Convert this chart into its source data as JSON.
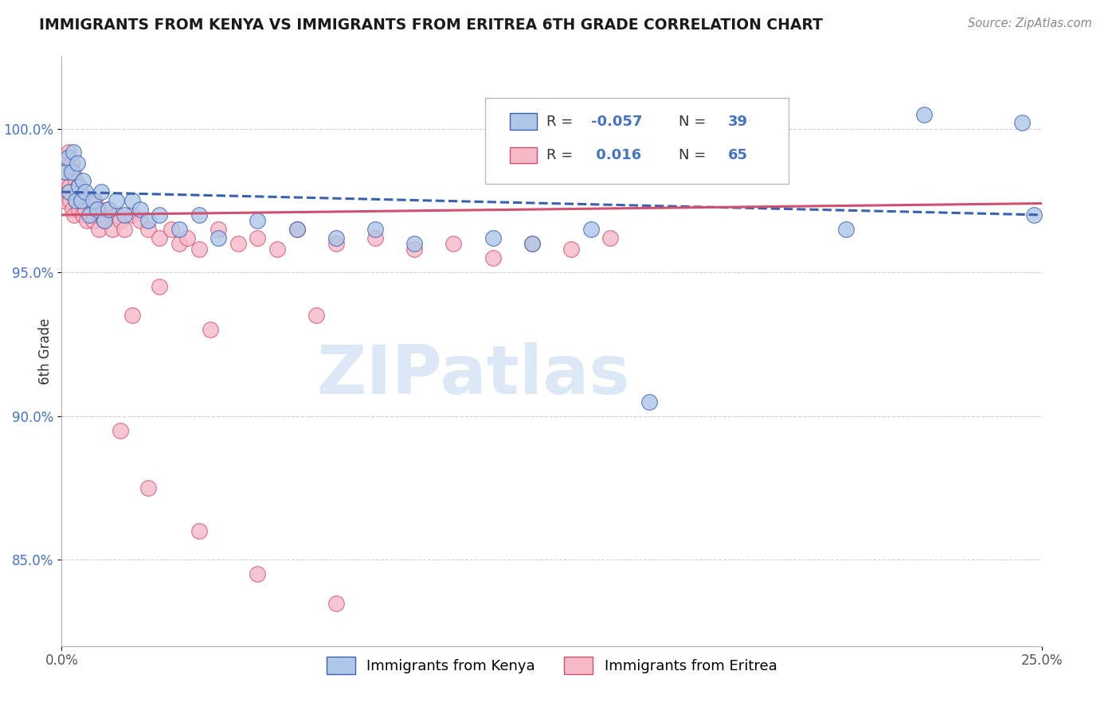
{
  "title": "IMMIGRANTS FROM KENYA VS IMMIGRANTS FROM ERITREA 6TH GRADE CORRELATION CHART",
  "source": "Source: ZipAtlas.com",
  "ylabel": "6th Grade",
  "xlim": [
    0.0,
    25.0
  ],
  "ylim": [
    82.0,
    102.5
  ],
  "yticks": [
    85.0,
    90.0,
    95.0,
    100.0
  ],
  "ytick_labels": [
    "85.0%",
    "90.0%",
    "95.0%",
    "100.0%"
  ],
  "kenya_color": "#aec6e8",
  "eritrea_color": "#f7b8c8",
  "kenya_line_color": "#3a60b0",
  "eritrea_line_color": "#d05070",
  "kenya_x": [
    0.1,
    0.15,
    0.2,
    0.25,
    0.3,
    0.35,
    0.4,
    0.45,
    0.5,
    0.55,
    0.6,
    0.7,
    0.8,
    0.9,
    1.0,
    1.1,
    1.2,
    1.4,
    1.6,
    1.8,
    2.0,
    2.2,
    2.5,
    3.0,
    3.5,
    4.0,
    5.0,
    6.0,
    7.0,
    8.0,
    9.0,
    11.0,
    13.5,
    22.0,
    24.5,
    24.8,
    15.0,
    20.0,
    12.0
  ],
  "kenya_y": [
    98.5,
    99.0,
    97.8,
    98.5,
    99.2,
    97.5,
    98.8,
    98.0,
    97.5,
    98.2,
    97.8,
    97.0,
    97.5,
    97.2,
    97.8,
    96.8,
    97.2,
    97.5,
    97.0,
    97.5,
    97.2,
    96.8,
    97.0,
    96.5,
    97.0,
    96.2,
    96.8,
    96.5,
    96.2,
    96.5,
    96.0,
    96.2,
    96.5,
    100.5,
    100.2,
    97.0,
    90.5,
    96.5,
    96.0
  ],
  "eritrea_x": [
    0.05,
    0.08,
    0.1,
    0.12,
    0.15,
    0.18,
    0.2,
    0.22,
    0.25,
    0.28,
    0.3,
    0.32,
    0.35,
    0.38,
    0.4,
    0.42,
    0.45,
    0.48,
    0.5,
    0.55,
    0.6,
    0.65,
    0.7,
    0.75,
    0.8,
    0.85,
    0.9,
    0.95,
    1.0,
    1.1,
    1.2,
    1.3,
    1.4,
    1.5,
    1.6,
    1.8,
    2.0,
    2.2,
    2.5,
    2.8,
    3.0,
    3.2,
    3.5,
    4.0,
    4.5,
    5.0,
    5.5,
    6.0,
    7.0,
    8.0,
    9.0,
    10.0,
    11.0,
    12.0,
    13.0,
    14.0,
    1.8,
    2.5,
    3.8,
    6.5,
    1.5,
    2.2,
    3.5,
    5.0,
    7.0
  ],
  "eritrea_y": [
    97.5,
    98.0,
    99.0,
    98.5,
    97.8,
    99.2,
    98.0,
    97.5,
    98.8,
    97.2,
    98.5,
    97.0,
    98.2,
    97.5,
    97.8,
    98.0,
    97.2,
    97.8,
    97.5,
    97.0,
    97.2,
    96.8,
    97.5,
    97.0,
    96.8,
    97.5,
    97.2,
    96.5,
    97.0,
    96.8,
    97.2,
    96.5,
    97.0,
    96.8,
    96.5,
    97.0,
    96.8,
    96.5,
    96.2,
    96.5,
    96.0,
    96.2,
    95.8,
    96.5,
    96.0,
    96.2,
    95.8,
    96.5,
    96.0,
    96.2,
    95.8,
    96.0,
    95.5,
    96.0,
    95.8,
    96.2,
    93.5,
    94.5,
    93.0,
    93.5,
    89.5,
    87.5,
    86.0,
    84.5,
    83.5
  ],
  "background_color": "#ffffff",
  "grid_color": "#d0d0d0",
  "title_color": "#1a1a1a",
  "watermark_text": "ZIPatlas",
  "watermark_color": "#dce8f5"
}
